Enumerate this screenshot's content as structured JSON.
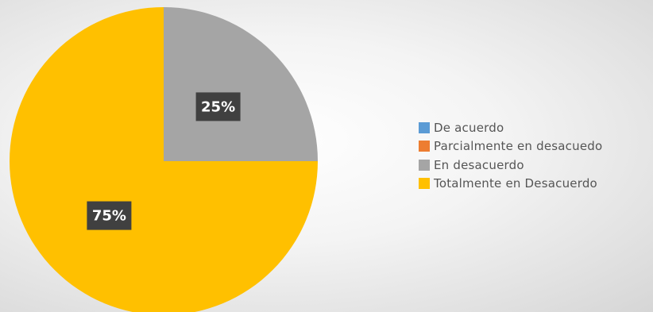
{
  "chart_data": {
    "type": "pie",
    "title": "",
    "categories": [
      "De acuerdo",
      "Parcialmente en desacuedo",
      "En desacuerdo",
      "Totalmente en Desacuerdo"
    ],
    "values": [
      0,
      0,
      25,
      75
    ],
    "value_unit": "%",
    "data_labels": [
      "",
      "",
      "25%",
      "75%"
    ],
    "colors": [
      "#5b9bd5",
      "#ed7d31",
      "#a5a5a5",
      "#ffc000"
    ],
    "start_angle_deg": 0,
    "direction": "clockwise",
    "legend_position": "right",
    "data_label_style": {
      "background": "#404040",
      "text_color": "#ffffff"
    },
    "background": {
      "type": "radial-gradient",
      "colors": [
        "#ffffff",
        "#d6d6d6"
      ]
    }
  }
}
